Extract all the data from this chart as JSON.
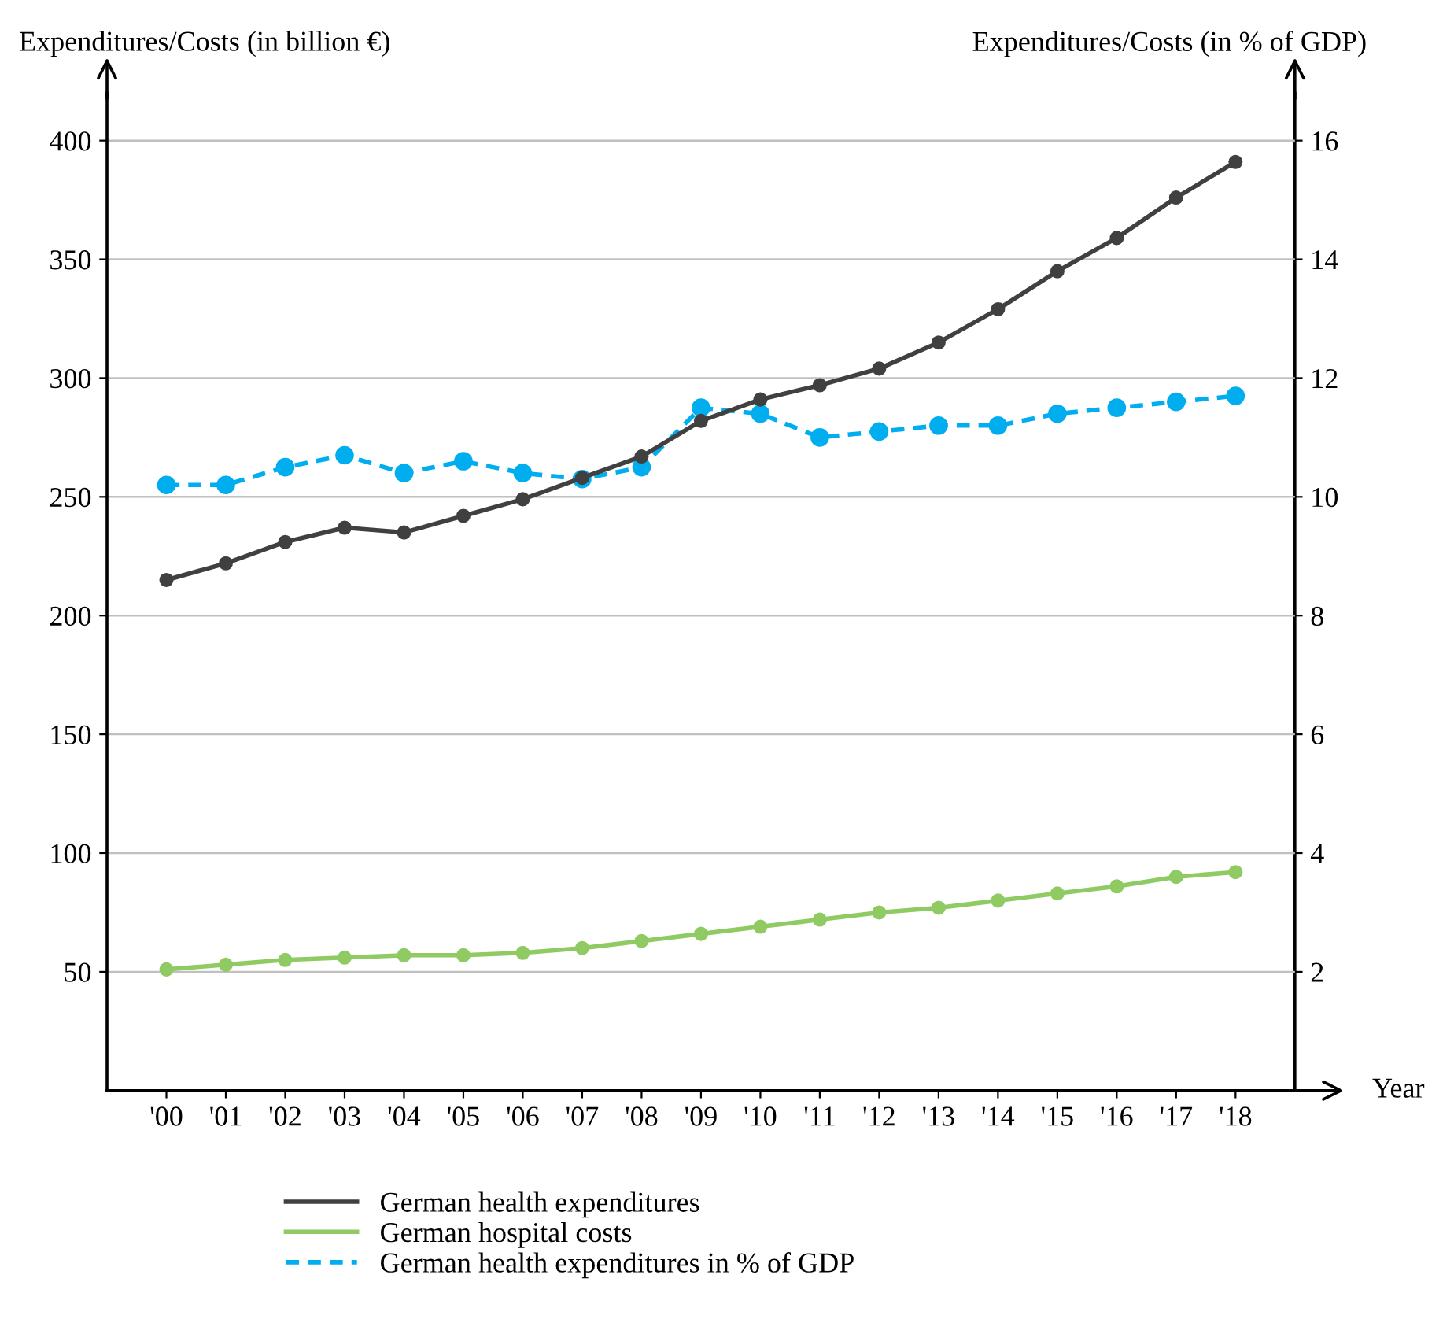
{
  "chart_data": {
    "type": "line",
    "xlabel": "Year",
    "ylabel": "Expenditures/Costs (in billion €)",
    "y2label": "Expenditures/Costs (in % of GDP)",
    "categories": [
      "'00",
      "'01",
      "'02",
      "'03",
      "'04",
      "'05",
      "'06",
      "'07",
      "'08",
      "'09",
      "'10",
      "'11",
      "'12",
      "'13",
      "'14",
      "'15",
      "'16",
      "'17",
      "'18"
    ],
    "series": [
      {
        "name": "German health expenditures",
        "color": "#404040",
        "line_style": "solid",
        "values": [
          215,
          222,
          231,
          237,
          235,
          242,
          249,
          258,
          267,
          282,
          291,
          297,
          304,
          315,
          329,
          345,
          359,
          376,
          391
        ]
      },
      {
        "name": "German hospital costs",
        "color": "#8fca63",
        "line_style": "solid",
        "values": [
          51,
          53,
          55,
          56,
          57,
          57,
          58,
          60,
          63,
          66,
          69,
          72,
          75,
          77,
          80,
          83,
          86,
          90,
          92
        ]
      },
      {
        "name": "German health expenditures in % of GDP",
        "color": "#00aeef",
        "line_style": "dashed",
        "axis": "y2",
        "values": [
          10.2,
          10.2,
          10.5,
          10.7,
          10.4,
          10.6,
          10.4,
          10.3,
          10.5,
          11.5,
          11.4,
          11.0,
          11.1,
          11.2,
          11.2,
          11.4,
          11.5,
          11.6,
          11.7
        ]
      }
    ],
    "ylim": [
      0,
      420
    ],
    "yticks": [
      50,
      100,
      150,
      200,
      250,
      300,
      350,
      400
    ],
    "y2lim": [
      0,
      16.8
    ],
    "y2ticks": [
      2,
      4,
      6,
      8,
      10,
      12,
      14,
      16
    ],
    "grid": "y",
    "legend": "bottom",
    "marker": "circle"
  }
}
